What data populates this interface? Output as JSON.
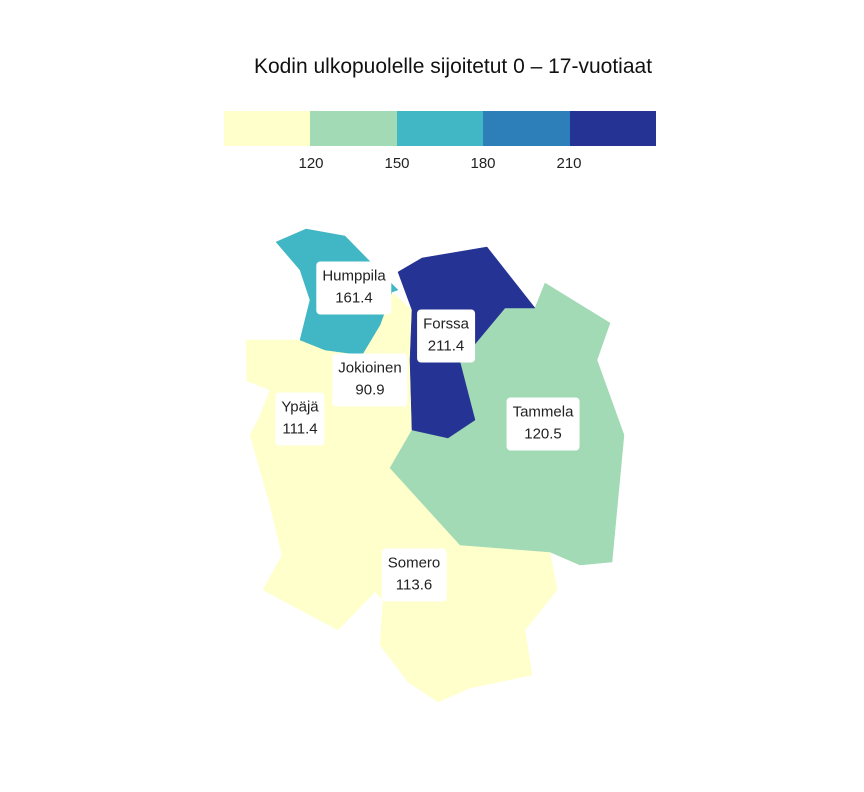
{
  "title": "Kodin ulkopuolelle sijoitetut 0 – 17-vuotiaat",
  "legend": {
    "colors": [
      "#ffffcc",
      "#a1dab4",
      "#41b6c4",
      "#2c7fb8",
      "#253494"
    ],
    "ticks": [
      "120",
      "150",
      "180",
      "210"
    ]
  },
  "regions": [
    {
      "id": "humppila",
      "name": "Humppila",
      "value": "161.4",
      "color": "#41b6c4"
    },
    {
      "id": "forssa",
      "name": "Forssa",
      "value": "211.4",
      "color": "#253494"
    },
    {
      "id": "jokioinen",
      "name": "Jokioinen",
      "value": "90.9",
      "color": "#ffffcc"
    },
    {
      "id": "ypaja",
      "name": "Ypäjä",
      "value": "111.4",
      "color": "#ffffcc"
    },
    {
      "id": "tammela",
      "name": "Tammela",
      "value": "120.5",
      "color": "#a1dab4"
    },
    {
      "id": "somero",
      "name": "Somero",
      "value": "113.6",
      "color": "#ffffcc"
    }
  ]
}
